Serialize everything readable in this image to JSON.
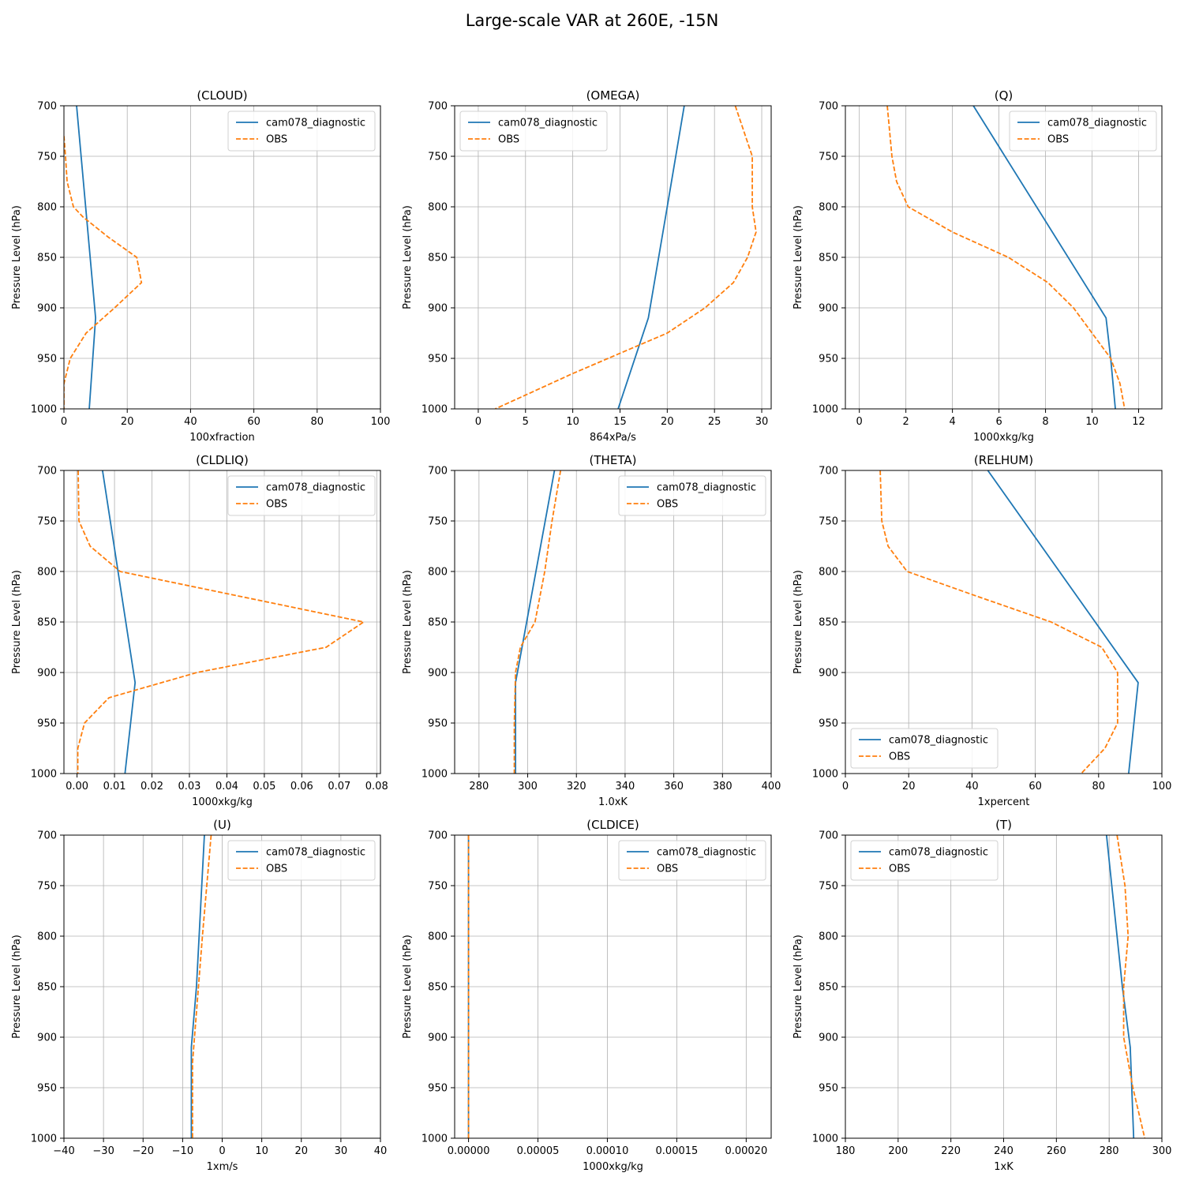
{
  "figure_title": "Large-scale VAR at 260E, -15N",
  "colors": {
    "model": "#1f77b4",
    "obs": "#ff7f0e",
    "grid": "#b0b0b0"
  },
  "chart_data": [
    {
      "type": "line",
      "title": "(CLOUD)",
      "xlabel": "100xfraction",
      "ylabel": "Pressure Level (hPa)",
      "xlim": [
        0,
        100
      ],
      "ylim": [
        1000,
        700
      ],
      "xticks": [
        0,
        20,
        40,
        60,
        80,
        100
      ],
      "xtick_labels": [
        "0",
        "20",
        "40",
        "60",
        "80",
        "100"
      ],
      "yticks": [
        700,
        750,
        800,
        850,
        900,
        950,
        1000
      ],
      "ytick_labels": [
        "700",
        "750",
        "800",
        "850",
        "900",
        "950",
        "1000"
      ],
      "grid": true,
      "legend_loc": "upper right",
      "series": [
        {
          "name": "cam078_diagnostic",
          "style": "solid",
          "points": [
            [
              4,
              700
            ],
            [
              10,
              910
            ],
            [
              8,
              1000
            ]
          ]
        },
        {
          "name": "OBS",
          "style": "dashed",
          "points": [
            [
              0,
              730
            ],
            [
              0.5,
              750
            ],
            [
              1,
              775
            ],
            [
              3,
              800
            ],
            [
              6,
              810
            ],
            [
              14,
              830
            ],
            [
              23,
              850
            ],
            [
              24.5,
              875
            ],
            [
              16,
              900
            ],
            [
              7,
              925
            ],
            [
              2,
              950
            ],
            [
              0,
              975
            ],
            [
              0,
              1000
            ]
          ]
        }
      ]
    },
    {
      "type": "line",
      "title": "(OMEGA)",
      "xlabel": "864xPa/s",
      "ylabel": "Pressure Level (hPa)",
      "xlim": [
        -2.5,
        31
      ],
      "ylim": [
        1000,
        700
      ],
      "xticks": [
        0,
        5,
        10,
        15,
        20,
        25,
        30
      ],
      "xtick_labels": [
        "0",
        "5",
        "10",
        "15",
        "20",
        "25",
        "30"
      ],
      "yticks": [
        700,
        750,
        800,
        850,
        900,
        950,
        1000
      ],
      "ytick_labels": [
        "700",
        "750",
        "800",
        "850",
        "900",
        "950",
        "1000"
      ],
      "grid": true,
      "legend_loc": "upper left",
      "series": [
        {
          "name": "cam078_diagnostic",
          "style": "solid",
          "points": [
            [
              21.8,
              700
            ],
            [
              20,
              800
            ],
            [
              18,
              910
            ],
            [
              14.8,
              1000
            ]
          ]
        },
        {
          "name": "OBS",
          "style": "dashed",
          "points": [
            [
              27.2,
              700
            ],
            [
              29,
              750
            ],
            [
              29,
              800
            ],
            [
              29.4,
              825
            ],
            [
              28.5,
              850
            ],
            [
              27,
              875
            ],
            [
              24,
              900
            ],
            [
              20,
              925
            ],
            [
              10,
              965
            ],
            [
              1.8,
              1000
            ]
          ]
        }
      ]
    },
    {
      "type": "line",
      "title": "(Q)",
      "xlabel": "1000xkg/kg",
      "ylabel": "Pressure Level (hPa)",
      "xlim": [
        -0.6,
        13
      ],
      "ylim": [
        1000,
        700
      ],
      "xticks": [
        0,
        2,
        4,
        6,
        8,
        10,
        12
      ],
      "xtick_labels": [
        "0",
        "2",
        "4",
        "6",
        "8",
        "10",
        "12"
      ],
      "yticks": [
        700,
        750,
        800,
        850,
        900,
        950,
        1000
      ],
      "ytick_labels": [
        "700",
        "750",
        "800",
        "850",
        "900",
        "950",
        "1000"
      ],
      "grid": true,
      "legend_loc": "upper right",
      "series": [
        {
          "name": "cam078_diagnostic",
          "style": "solid",
          "points": [
            [
              4.9,
              700
            ],
            [
              10.6,
              910
            ],
            [
              10.8,
              950
            ],
            [
              11,
              1000
            ]
          ]
        },
        {
          "name": "OBS",
          "style": "dashed",
          "points": [
            [
              1.2,
              700
            ],
            [
              1.4,
              750
            ],
            [
              1.6,
              775
            ],
            [
              2.1,
              800
            ],
            [
              4,
              825
            ],
            [
              6.4,
              850
            ],
            [
              8.1,
              875
            ],
            [
              9.2,
              900
            ],
            [
              10,
              925
            ],
            [
              10.8,
              950
            ],
            [
              11.2,
              975
            ],
            [
              11.4,
              1000
            ]
          ]
        }
      ]
    },
    {
      "type": "line",
      "title": "(CLDLIQ)",
      "xlabel": "1000xkg/kg",
      "ylabel": "Pressure Level (hPa)",
      "xlim": [
        -0.0035,
        0.081
      ],
      "ylim": [
        1000,
        700
      ],
      "xticks": [
        0,
        0.01,
        0.02,
        0.03,
        0.04,
        0.05,
        0.06,
        0.07,
        0.08
      ],
      "xtick_labels": [
        "0.00",
        "0.01",
        "0.02",
        "0.03",
        "0.04",
        "0.05",
        "0.06",
        "0.07",
        "0.08"
      ],
      "yticks": [
        700,
        750,
        800,
        850,
        900,
        950,
        1000
      ],
      "ytick_labels": [
        "700",
        "750",
        "800",
        "850",
        "900",
        "950",
        "1000"
      ],
      "grid": true,
      "legend_loc": "upper right",
      "series": [
        {
          "name": "cam078_diagnostic",
          "style": "solid",
          "points": [
            [
              0.0068,
              700
            ],
            [
              0.0155,
              910
            ],
            [
              0.0128,
              1000
            ]
          ]
        },
        {
          "name": "OBS",
          "style": "dashed",
          "points": [
            [
              0.0003,
              700
            ],
            [
              0.0005,
              750
            ],
            [
              0.0035,
              775
            ],
            [
              0.0115,
              800
            ],
            [
              0.0765,
              850
            ],
            [
              0.0665,
              875
            ],
            [
              0.032,
              900
            ],
            [
              0.0085,
              925
            ],
            [
              0.002,
              950
            ],
            [
              0.0002,
              975
            ],
            [
              0.0002,
              1000
            ]
          ]
        }
      ]
    },
    {
      "type": "line",
      "title": "(THETA)",
      "xlabel": "1.0xK",
      "ylabel": "Pressure Level (hPa)",
      "xlim": [
        270,
        400
      ],
      "ylim": [
        1000,
        700
      ],
      "xticks": [
        280,
        300,
        320,
        340,
        360,
        380,
        400
      ],
      "xtick_labels": [
        "280",
        "300",
        "320",
        "340",
        "360",
        "380",
        "400"
      ],
      "yticks": [
        700,
        750,
        800,
        850,
        900,
        950,
        1000
      ],
      "ytick_labels": [
        "700",
        "750",
        "800",
        "850",
        "900",
        "950",
        "1000"
      ],
      "grid": true,
      "legend_loc": "upper right",
      "series": [
        {
          "name": "cam078_diagnostic",
          "style": "solid",
          "points": [
            [
              311,
              700
            ],
            [
              295,
              910
            ],
            [
              295,
              1000
            ]
          ]
        },
        {
          "name": "OBS",
          "style": "dashed",
          "points": [
            [
              313.5,
              700
            ],
            [
              310,
              750
            ],
            [
              307,
              800
            ],
            [
              303,
              850
            ],
            [
              297,
              875
            ],
            [
              295,
              900
            ],
            [
              294.5,
              950
            ],
            [
              294.5,
              1000
            ]
          ]
        }
      ]
    },
    {
      "type": "line",
      "title": "(RELHUM)",
      "xlabel": "1xpercent",
      "ylabel": "Pressure Level (hPa)",
      "xlim": [
        0,
        100
      ],
      "ylim": [
        1000,
        700
      ],
      "xticks": [
        0,
        20,
        40,
        60,
        80,
        100
      ],
      "xtick_labels": [
        "0",
        "20",
        "40",
        "60",
        "80",
        "100"
      ],
      "yticks": [
        700,
        750,
        800,
        850,
        900,
        950,
        1000
      ],
      "ytick_labels": [
        "700",
        "750",
        "800",
        "850",
        "900",
        "950",
        "1000"
      ],
      "grid": true,
      "legend_loc": "lower left",
      "series": [
        {
          "name": "cam078_diagnostic",
          "style": "solid",
          "points": [
            [
              45,
              700
            ],
            [
              92.5,
              910
            ],
            [
              89.5,
              1000
            ]
          ]
        },
        {
          "name": "OBS",
          "style": "dashed",
          "points": [
            [
              11,
              700
            ],
            [
              11.5,
              750
            ],
            [
              13.5,
              775
            ],
            [
              19.5,
              800
            ],
            [
              42,
              825
            ],
            [
              65,
              850
            ],
            [
              81,
              875
            ],
            [
              86,
              900
            ],
            [
              86,
              950
            ],
            [
              82,
              975
            ],
            [
              74.5,
              1000
            ]
          ]
        }
      ]
    },
    {
      "type": "line",
      "title": "(U)",
      "xlabel": "1xm/s",
      "ylabel": "Pressure Level (hPa)",
      "xlim": [
        -40,
        40
      ],
      "ylim": [
        1000,
        700
      ],
      "xticks": [
        -40,
        -30,
        -20,
        -10,
        0,
        10,
        20,
        30,
        40
      ],
      "xtick_labels": [
        "−40",
        "−30",
        "−20",
        "−10",
        "0",
        "10",
        "20",
        "30",
        "40"
      ],
      "yticks": [
        700,
        750,
        800,
        850,
        900,
        950,
        1000
      ],
      "ytick_labels": [
        "700",
        "750",
        "800",
        "850",
        "900",
        "950",
        "1000"
      ],
      "grid": true,
      "legend_loc": "upper right",
      "series": [
        {
          "name": "cam078_diagnostic",
          "style": "solid",
          "points": [
            [
              -4.5,
              700
            ],
            [
              -6.5,
              850
            ],
            [
              -7.8,
              910
            ],
            [
              -7.8,
              1000
            ]
          ]
        },
        {
          "name": "OBS",
          "style": "dashed",
          "points": [
            [
              -2.8,
              700
            ],
            [
              -5,
              800
            ],
            [
              -6.5,
              875
            ],
            [
              -7.5,
              925
            ],
            [
              -7.5,
              1000
            ]
          ]
        }
      ]
    },
    {
      "type": "line",
      "title": "(CLDICE)",
      "xlabel": "1000xkg/kg",
      "ylabel": "Pressure Level (hPa)",
      "xlim": [
        -1e-05,
        0.000218
      ],
      "ylim": [
        1000,
        700
      ],
      "xticks": [
        0,
        5e-05,
        0.0001,
        0.00015,
        0.0002
      ],
      "xtick_labels": [
        "0.00000",
        "0.00005",
        "0.00010",
        "0.00015",
        "0.00020"
      ],
      "yticks": [
        700,
        750,
        800,
        850,
        900,
        950,
        1000
      ],
      "ytick_labels": [
        "700",
        "750",
        "800",
        "850",
        "900",
        "950",
        "1000"
      ],
      "grid": true,
      "legend_loc": "upper right",
      "series": [
        {
          "name": "cam078_diagnostic",
          "style": "solid",
          "points": [
            [
              0,
              700
            ],
            [
              0,
              1000
            ]
          ]
        },
        {
          "name": "OBS",
          "style": "dashed",
          "points": [
            [
              0,
              700
            ],
            [
              0,
              1000
            ]
          ]
        }
      ]
    },
    {
      "type": "line",
      "title": "(T)",
      "xlabel": "1xK",
      "ylabel": "Pressure Level (hPa)",
      "xlim": [
        180,
        300
      ],
      "ylim": [
        1000,
        700
      ],
      "xticks": [
        180,
        200,
        220,
        240,
        260,
        280,
        300
      ],
      "xtick_labels": [
        "180",
        "200",
        "220",
        "240",
        "260",
        "280",
        "300"
      ],
      "yticks": [
        700,
        750,
        800,
        850,
        900,
        950,
        1000
      ],
      "ytick_labels": [
        "700",
        "750",
        "800",
        "850",
        "900",
        "950",
        "1000"
      ],
      "grid": true,
      "legend_loc": "upper left",
      "series": [
        {
          "name": "cam078_diagnostic",
          "style": "solid",
          "points": [
            [
              279,
              700
            ],
            [
              285,
              850
            ],
            [
              288,
              910
            ],
            [
              289.3,
              1000
            ]
          ]
        },
        {
          "name": "OBS",
          "style": "dashed",
          "points": [
            [
              283,
              700
            ],
            [
              286,
              750
            ],
            [
              287.2,
              800
            ],
            [
              285.5,
              850
            ],
            [
              285.5,
              900
            ],
            [
              289,
              950
            ],
            [
              293.5,
              1000
            ]
          ]
        }
      ]
    }
  ]
}
